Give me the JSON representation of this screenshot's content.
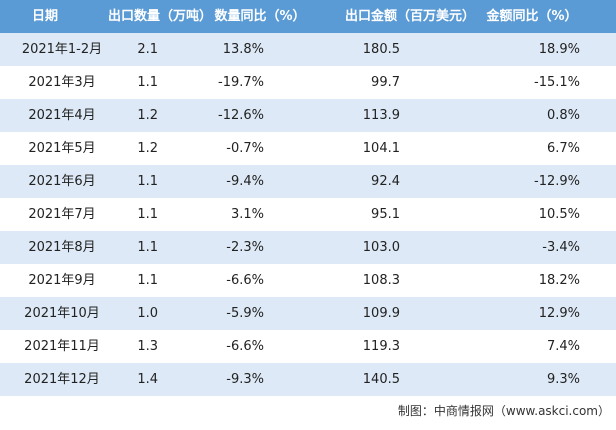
{
  "table": {
    "header": [
      "日期",
      "出口数量（万吨）",
      "数量同比（%）",
      "出口金额（百万美元）",
      "金额同比（%）"
    ],
    "rows": [
      [
        "2021年1-2月",
        "2.1",
        "13.8%",
        "180.5",
        "18.9%"
      ],
      [
        "2021年3月",
        "1.1",
        "-19.7%",
        "99.7",
        "-15.1%"
      ],
      [
        "2021年4月",
        "1.2",
        "-12.6%",
        "113.9",
        "0.8%"
      ],
      [
        "2021年5月",
        "1.2",
        "-0.7%",
        "104.1",
        "6.7%"
      ],
      [
        "2021年6月",
        "1.1",
        "-9.4%",
        "92.4",
        "-12.9%"
      ],
      [
        "2021年7月",
        "1.1",
        "3.1%",
        "95.1",
        "10.5%"
      ],
      [
        "2021年8月",
        "1.1",
        "-2.3%",
        "103.0",
        "-3.4%"
      ],
      [
        "2021年9月",
        "1.1",
        "-6.6%",
        "108.3",
        "18.2%"
      ],
      [
        "2021年10月",
        "1.0",
        "-5.9%",
        "109.9",
        "12.9%"
      ],
      [
        "2021年11月",
        "1.3",
        "-6.6%",
        "119.3",
        "7.4%"
      ],
      [
        "2021年12月",
        "1.4",
        "-9.3%",
        "140.5",
        "9.3%"
      ]
    ]
  },
  "footer": {
    "source": "制图：中商情报网（www.askci.com）"
  }
}
